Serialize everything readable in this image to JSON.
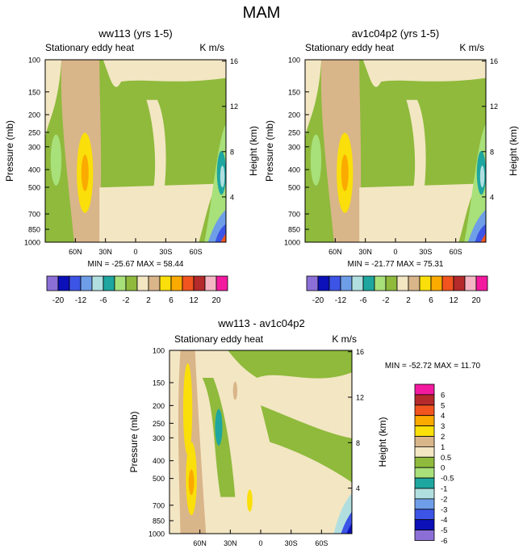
{
  "title": "MAM",
  "palette": {
    "neg6": "#8c6fd6",
    "neg5": "#0b10b8",
    "neg4": "#3c55e6",
    "neg3": "#6f9ee8",
    "neg2": "#b1dfe0",
    "neg1": "#1ea6a0",
    "neg05": "#a8e07a",
    "zero": "#8fba3c",
    "pos05": "#f3e6c3",
    "pos1": "#d9b58a",
    "pos2": "#fadf0a",
    "pos3": "#fbaa00",
    "pos4": "#f2541f",
    "pos5": "#b52a2a",
    "pos6": "#f4b6c2",
    "pos7": "#f31aa0"
  },
  "chart_data": [
    {
      "type": "contour",
      "title": "ww113 (yrs 1-5)",
      "subtitle": "Stationary eddy heat",
      "units": "K m/s",
      "ylabel": "Pressure (mb)",
      "ylabel_right": "Height (km)",
      "yticks": [
        "100",
        "150",
        "200",
        "250",
        "300",
        "400",
        "500",
        "700",
        "850",
        "1000"
      ],
      "yticks_pressure": [
        100,
        150,
        200,
        250,
        300,
        400,
        500,
        700,
        850,
        1000
      ],
      "yticks_right": [
        "16",
        "12",
        "8",
        "4"
      ],
      "yticks_right_km": [
        16,
        12,
        8,
        4
      ],
      "ylim": [
        1000,
        100
      ],
      "xlim": [
        90,
        -90
      ],
      "xticks": [
        "60N",
        "30N",
        "0",
        "30S",
        "60S"
      ],
      "xticks_lat": [
        60,
        30,
        0,
        -30,
        -60
      ],
      "min": "-25.67",
      "max": "58.44",
      "stats": "MIN = -25.67   MAX =  58.44"
    },
    {
      "type": "contour",
      "title": "av1c04p2 (yrs 1-5)",
      "subtitle": "Stationary eddy heat",
      "units": "K m/s",
      "ylabel": "Pressure (mb)",
      "ylabel_right": "Height (km)",
      "yticks": [
        "100",
        "150",
        "200",
        "250",
        "300",
        "400",
        "500",
        "700",
        "850",
        "1000"
      ],
      "yticks_pressure": [
        100,
        150,
        200,
        250,
        300,
        400,
        500,
        700,
        850,
        1000
      ],
      "yticks_right": [
        "16",
        "12",
        "8",
        "4"
      ],
      "yticks_right_km": [
        16,
        12,
        8,
        4
      ],
      "ylim": [
        1000,
        100
      ],
      "xlim": [
        90,
        -90
      ],
      "xticks": [
        "60N",
        "30N",
        "0",
        "30S",
        "60S"
      ],
      "xticks_lat": [
        60,
        30,
        0,
        -30,
        -60
      ],
      "min": "-21.77",
      "max": "75.31",
      "stats": "MIN = -21.77   MAX =  75.31"
    },
    {
      "type": "contour",
      "title": "ww113 - av1c04p2",
      "subtitle": "Stationary eddy heat",
      "units": "K m/s",
      "ylabel": "Pressure (mb)",
      "ylabel_right": "Height (km)",
      "yticks": [
        "100",
        "150",
        "200",
        "250",
        "300",
        "400",
        "500",
        "700",
        "850",
        "1000"
      ],
      "yticks_pressure": [
        100,
        150,
        200,
        250,
        300,
        400,
        500,
        700,
        850,
        1000
      ],
      "yticks_right": [
        "16",
        "12",
        "8",
        "4"
      ],
      "yticks_right_km": [
        16,
        12,
        8,
        4
      ],
      "ylim": [
        1000,
        100
      ],
      "xlim": [
        90,
        -90
      ],
      "xticks": [
        "60N",
        "30N",
        "0",
        "30S",
        "60S"
      ],
      "xticks_lat": [
        60,
        30,
        0,
        -30,
        -60
      ],
      "min": "-52.72",
      "max": "11.70",
      "stats": "MIN = -52.72   MAX =  11.70"
    }
  ],
  "colorbar_top": {
    "colors": [
      "neg6",
      "neg5",
      "neg4",
      "neg3",
      "neg2",
      "neg1",
      "neg05",
      "zero",
      "pos05",
      "pos1",
      "pos2",
      "pos3",
      "pos4",
      "pos5",
      "pos6",
      "pos7"
    ],
    "labels": [
      "-20",
      "-12",
      "-6",
      "-2",
      "2",
      "6",
      "12",
      "20"
    ],
    "levels": [
      -20,
      -16,
      -12,
      -8,
      -6,
      -4,
      -2,
      -1,
      1,
      2,
      4,
      6,
      8,
      12,
      16,
      20
    ]
  },
  "colorbar_diff": {
    "colors": [
      "pos7",
      "pos5",
      "pos4",
      "pos3",
      "pos2",
      "pos1",
      "pos05",
      "zero",
      "neg05",
      "neg1",
      "neg2",
      "neg3",
      "neg4",
      "neg5",
      "neg6"
    ],
    "labels": [
      "6",
      "5",
      "4",
      "3",
      "2",
      "1",
      "0.5",
      "0",
      "-0.5",
      "-1",
      "-2",
      "-3",
      "-4",
      "-5",
      "-6"
    ],
    "levels": [
      6,
      5,
      4,
      3,
      2,
      1,
      0.5,
      0,
      -0.5,
      -1,
      -2,
      -3,
      -4,
      -5,
      -6
    ]
  }
}
